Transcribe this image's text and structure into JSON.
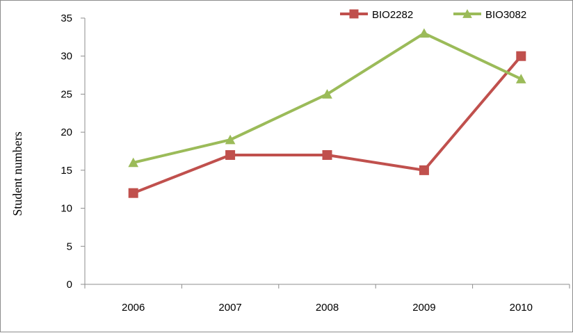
{
  "chart_data": {
    "type": "line",
    "categories": [
      "2006",
      "2007",
      "2008",
      "2009",
      "2010"
    ],
    "series": [
      {
        "name": "BIO2282",
        "values": [
          12,
          17,
          17,
          15,
          30
        ],
        "color": "#c0504d",
        "marker": "square"
      },
      {
        "name": "BIO3082",
        "values": [
          16,
          19,
          25,
          33,
          27
        ],
        "color": "#9bbb59",
        "marker": "triangle"
      }
    ],
    "title": "",
    "xlabel": "",
    "ylabel": "Student numbers",
    "ylim": [
      0,
      35
    ],
    "yticks": [
      "0",
      "5",
      "10",
      "15",
      "20",
      "25",
      "30",
      "35"
    ],
    "grid": false,
    "legend_position": "top-right"
  }
}
